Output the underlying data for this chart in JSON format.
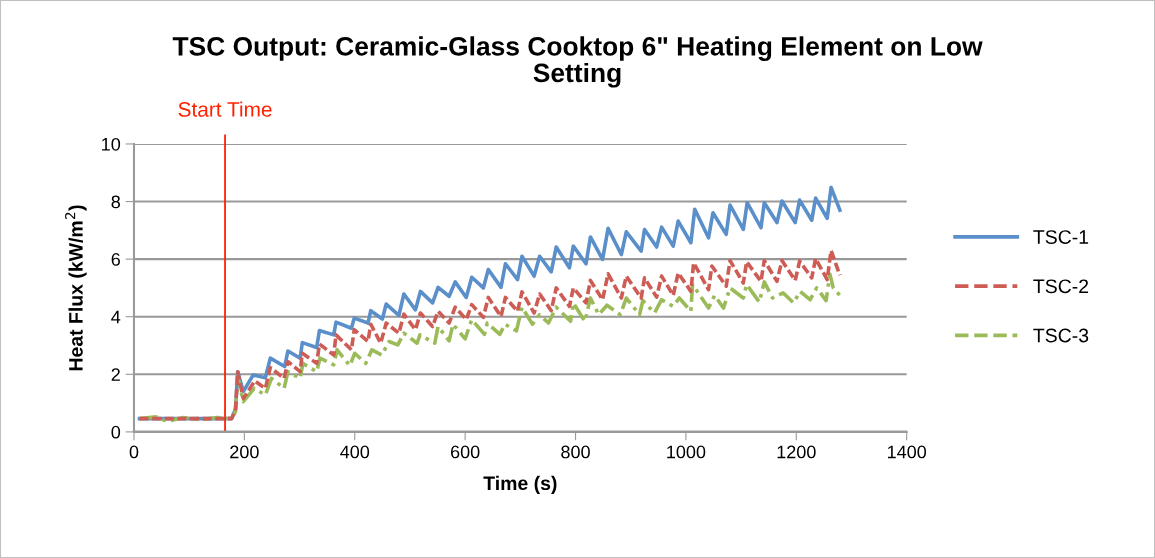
{
  "chart_data": {
    "type": "line",
    "title": "TSC Output: Ceramic-Glass Cooktop 6\" Heating Element on Low Setting",
    "xlabel": "Time (s)",
    "ylabel": "Heat Flux (kW/m$^{2}$)",
    "xlim": [
      0,
      1400
    ],
    "xticks": [
      0,
      200,
      400,
      600,
      800,
      1000,
      1200,
      1400
    ],
    "ylim": [
      0,
      10
    ],
    "yticks": [
      0,
      2,
      4,
      6,
      8,
      10
    ],
    "grid": "y",
    "legend": "right",
    "marker": "none",
    "ref_lines": [
      {
        "axis": "x",
        "value": 165,
        "label": "Start Time",
        "color": "#ff2000",
        "line_style": "solid"
      }
    ],
    "series": [
      {
        "name": "TSC-1",
        "color": "#5a8fca",
        "line_style": "solid",
        "x": [
          10,
          60,
          120,
          177,
          184,
          188,
          198,
          216,
          238,
          247,
          273,
          279,
          301,
          305,
          331,
          336,
          362,
          366,
          394,
          399,
          424,
          429,
          450,
          457,
          480,
          489,
          510,
          519,
          541,
          551,
          571,
          582,
          602,
          612,
          633,
          642,
          665,
          673,
          695,
          703,
          725,
          735,
          756,
          765,
          789,
          796,
          819,
          827,
          849,
          859,
          883,
          892,
          919,
          925,
          947,
          956,
          977,
          986,
          1009,
          1016,
          1041,
          1049,
          1073,
          1080,
          1104,
          1111,
          1136,
          1142,
          1165,
          1174,
          1198,
          1206,
          1228,
          1235,
          1256,
          1263,
          1279
        ],
        "values": [
          0.46,
          0.46,
          0.46,
          0.46,
          0.8,
          2.09,
          1.4,
          1.98,
          1.88,
          2.56,
          2.27,
          2.81,
          2.56,
          3.1,
          2.93,
          3.52,
          3.37,
          3.81,
          3.6,
          3.95,
          3.78,
          4.21,
          3.92,
          4.44,
          4.05,
          4.79,
          4.24,
          4.88,
          4.48,
          5.02,
          4.71,
          5.21,
          4.67,
          5.37,
          5.0,
          5.64,
          5.02,
          5.84,
          5.29,
          6.1,
          5.41,
          6.1,
          5.56,
          6.42,
          5.7,
          6.45,
          5.84,
          6.77,
          5.99,
          7.07,
          6.16,
          6.95,
          6.28,
          7.03,
          6.42,
          7.11,
          6.45,
          7.32,
          6.57,
          7.73,
          6.74,
          7.61,
          6.86,
          7.88,
          7.03,
          7.96,
          7.09,
          7.96,
          7.27,
          8.02,
          7.27,
          8.05,
          7.35,
          8.12,
          7.42,
          8.49,
          7.7
        ]
      },
      {
        "name": "TSC-2",
        "color": "#cd5c55",
        "line_style": "dashed",
        "x": [
          10,
          60,
          120,
          177,
          184,
          188,
          198,
          219,
          238,
          247,
          272,
          279,
          301,
          305,
          331,
          336,
          362,
          366,
          394,
          399,
          424,
          429,
          447,
          457,
          480,
          489,
          510,
          519,
          541,
          551,
          571,
          582,
          602,
          612,
          633,
          642,
          665,
          673,
          695,
          703,
          725,
          735,
          756,
          765,
          789,
          796,
          819,
          827,
          849,
          859,
          883,
          892,
          919,
          925,
          947,
          956,
          977,
          986,
          1009,
          1014,
          1041,
          1047,
          1073,
          1080,
          1104,
          1110,
          1136,
          1142,
          1165,
          1174,
          1198,
          1206,
          1228,
          1235,
          1256,
          1263,
          1279
        ],
        "values": [
          0.46,
          0.46,
          0.46,
          0.46,
          0.8,
          2.09,
          1.16,
          1.77,
          1.51,
          2.23,
          1.86,
          2.44,
          2.09,
          2.73,
          2.38,
          3.05,
          2.67,
          3.37,
          2.85,
          3.55,
          3.14,
          3.74,
          3.08,
          3.78,
          3.43,
          4.09,
          3.55,
          4.13,
          3.66,
          4.19,
          3.78,
          4.33,
          3.9,
          4.42,
          3.98,
          4.67,
          4.01,
          4.67,
          4.19,
          4.86,
          4.13,
          4.79,
          4.21,
          5.0,
          4.36,
          5.0,
          4.48,
          5.26,
          4.59,
          5.49,
          4.65,
          5.41,
          4.65,
          5.35,
          4.68,
          5.41,
          4.74,
          5.52,
          4.88,
          5.87,
          4.94,
          5.76,
          5.06,
          5.95,
          5.17,
          5.91,
          5.23,
          5.95,
          5.23,
          5.95,
          5.26,
          5.93,
          5.35,
          6.02,
          5.29,
          6.3,
          5.44
        ]
      },
      {
        "name": "TSC-3",
        "color": "#9bbb59",
        "line_style": "dashdot",
        "x": [
          10,
          40,
          60,
          90,
          120,
          150,
          177,
          184,
          188,
          198,
          218,
          238,
          249,
          272,
          279,
          301,
          306,
          331,
          337,
          362,
          368,
          391,
          400,
          420,
          431,
          449,
          462,
          478,
          489,
          513,
          518,
          545,
          551,
          571,
          578,
          600,
          612,
          635,
          640,
          663,
          672,
          693,
          703,
          722,
          735,
          751,
          765,
          791,
          796,
          817,
          827,
          842,
          857,
          881,
          892,
          916,
          922,
          943,
          956,
          977,
          988,
          1009,
          1012,
          1041,
          1052,
          1068,
          1080,
          1104,
          1110,
          1133,
          1142,
          1157,
          1176,
          1195,
          1207,
          1225,
          1237,
          1254,
          1261,
          1267,
          1279
        ],
        "values": [
          0.46,
          0.52,
          0.36,
          0.5,
          0.42,
          0.5,
          0.46,
          0.7,
          1.92,
          1.05,
          1.51,
          1.28,
          1.86,
          1.51,
          2.09,
          1.86,
          2.38,
          2.09,
          2.56,
          2.33,
          2.85,
          2.3,
          2.73,
          2.38,
          2.85,
          2.67,
          3.14,
          3.02,
          3.43,
          3.08,
          3.37,
          3.08,
          3.66,
          3.16,
          3.74,
          3.23,
          3.9,
          3.39,
          3.78,
          3.39,
          3.74,
          3.51,
          4.33,
          3.74,
          4.07,
          3.78,
          4.33,
          3.84,
          4.48,
          3.84,
          4.65,
          4.07,
          4.4,
          4.07,
          4.65,
          4.07,
          4.56,
          4.13,
          4.59,
          4.36,
          4.65,
          4.19,
          5.12,
          4.3,
          4.74,
          4.3,
          5.0,
          4.65,
          5.12,
          4.51,
          5.21,
          4.65,
          4.83,
          4.48,
          4.88,
          4.59,
          5.0,
          4.56,
          5.47,
          5.0,
          4.74
        ]
      }
    ]
  }
}
